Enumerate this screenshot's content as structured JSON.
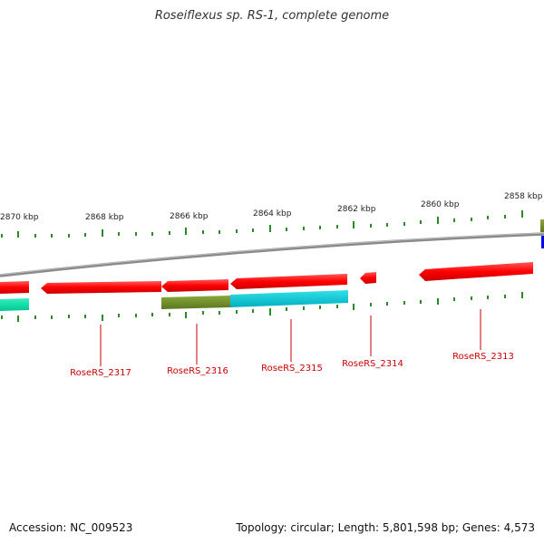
{
  "title": "Roseiflexus sp. RS-1, complete genome",
  "footer": {
    "accession": "Accession: NC_009523",
    "summary": "Topology: circular; Length: 5,801,598 bp; Genes: 4,573"
  },
  "scale": {
    "labels": [
      "2870 kbp",
      "2868 kbp",
      "2866 kbp",
      "2864 kbp",
      "2862 kbp",
      "2860 kbp",
      "2858 kbp"
    ]
  },
  "genes": [
    {
      "name": "RoseRS_2317",
      "color": "#ff0000"
    },
    {
      "name": "RoseRS_2316",
      "color": "#ff0000"
    },
    {
      "name": "RoseRS_2315",
      "color": "#ff0000"
    },
    {
      "name": "RoseRS_2314",
      "color": "#ff0000"
    },
    {
      "name": "RoseRS_2313",
      "color": "#ff0000"
    }
  ],
  "colors": {
    "gene_red": "#ff0000",
    "olive": "#6b8e23",
    "cyan": "#00c8d0",
    "teal": "#00d8a0",
    "blue": "#0000ff",
    "tick_green": "#2a8a2a",
    "backbone": "#888888"
  }
}
